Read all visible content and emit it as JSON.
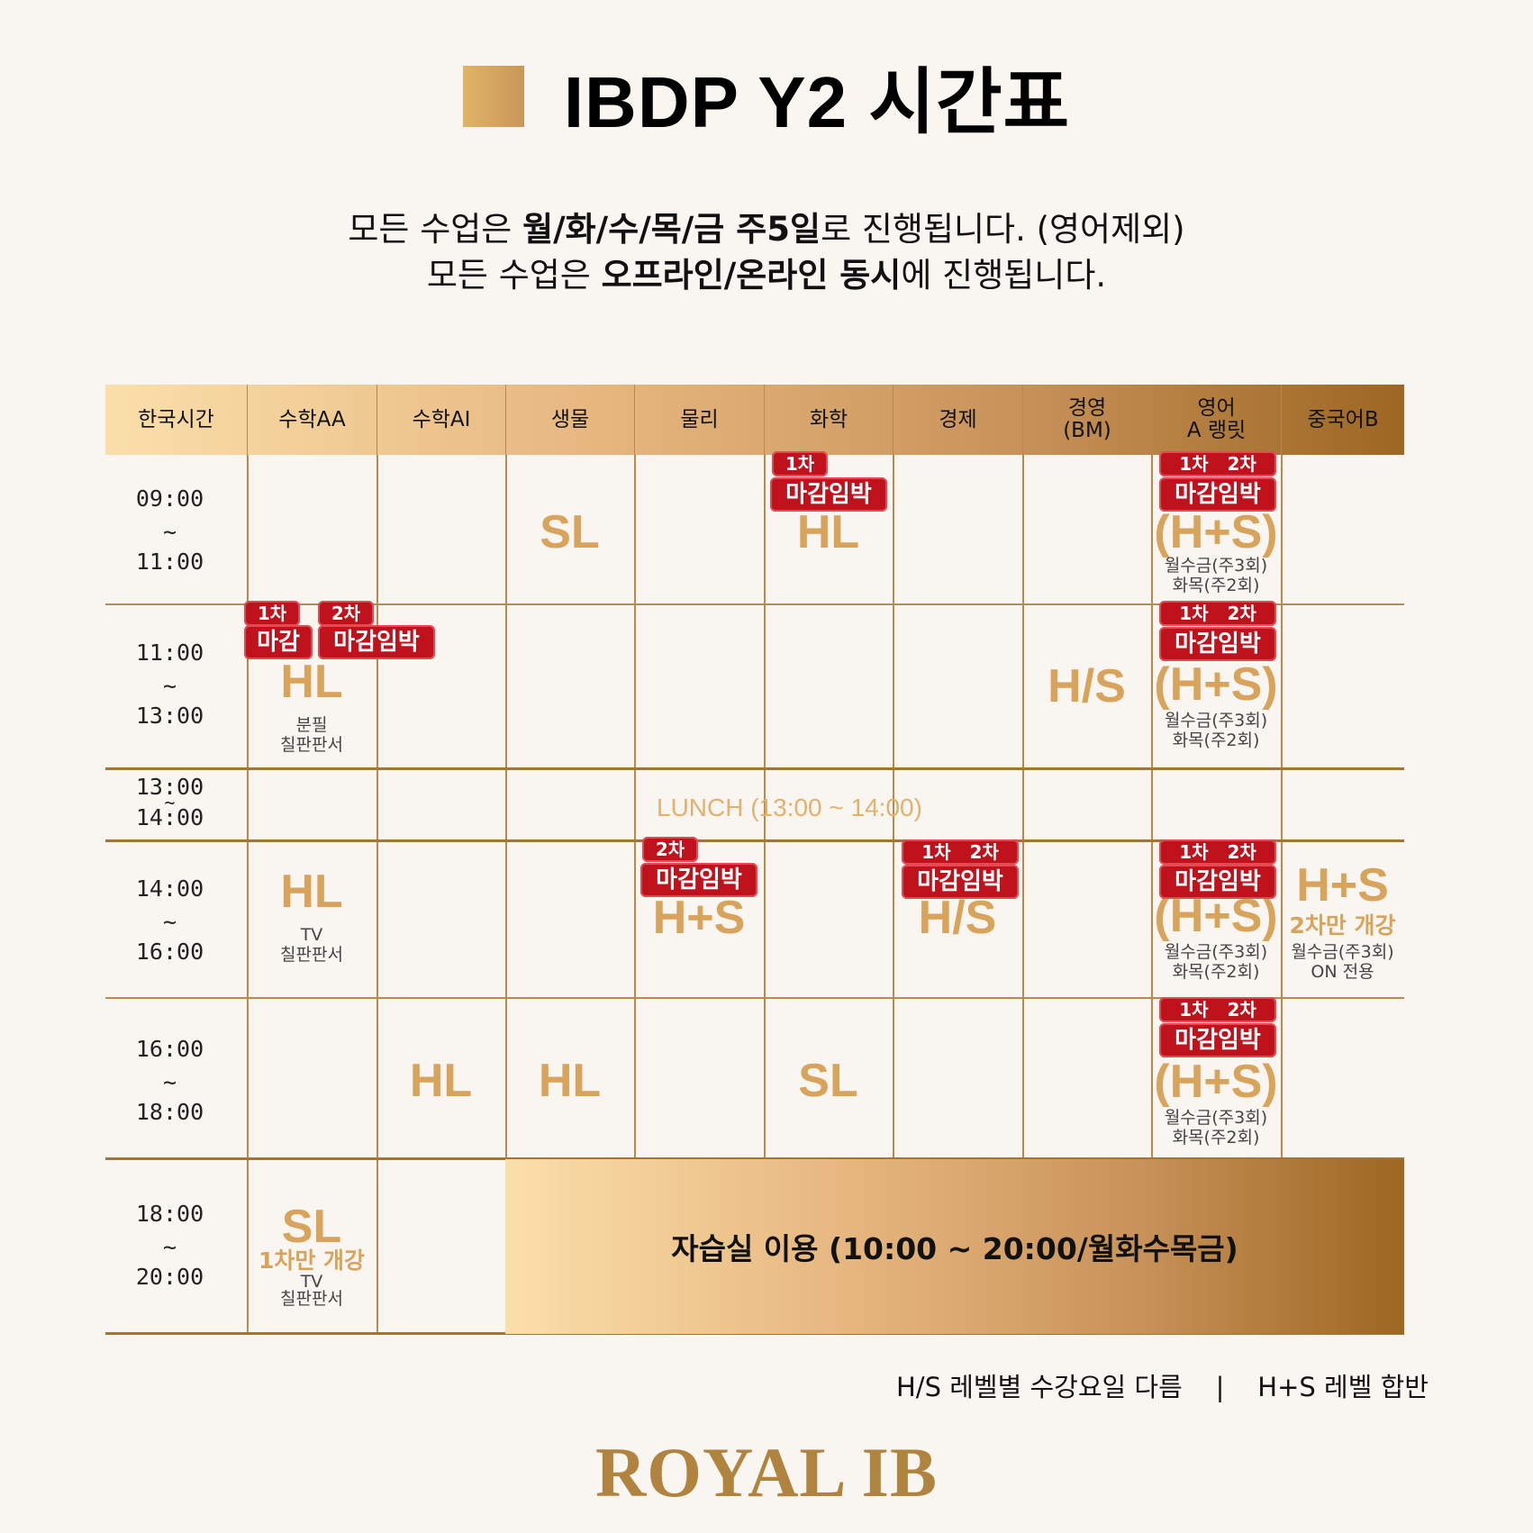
{
  "title": "IBDP Y2 시간표",
  "subtitle": {
    "line1_pre": "모든 수업은 ",
    "line1_bold1": "월/화/수/목/금 주5일",
    "line1_post": "로 진행됩니다. (영어제외)",
    "line2_pre": "모든 수업은 ",
    "line2_bold1": "오프라인/온라인 동시",
    "line2_post": "에 진행됩니다."
  },
  "headers": [
    "한국시간",
    "수학AA",
    "수학AI",
    "생물",
    "물리",
    "화학",
    "경제",
    "경영\n(BM)",
    "영어\nA 랭릿",
    "중국어B"
  ],
  "times": [
    [
      "09:00",
      "~",
      "11:00"
    ],
    [
      "11:00",
      "~",
      "13:00"
    ],
    [
      "13:00",
      "~",
      "14:00"
    ],
    [
      "14:00",
      "~",
      "16:00"
    ],
    [
      "16:00",
      "~",
      "18:00"
    ],
    [
      "18:00",
      "~",
      "20:00"
    ]
  ],
  "lunch": "LUNCH (13:00 ~ 14:00)",
  "study_room": "자습실 이용 (10:00 ~ 20:00/월화수목금)",
  "levels": {
    "SL": "SL",
    "HL": "HL",
    "HS_slash": "H/S",
    "HS_plus": "H+S",
    "HS_paren": "(H+S)"
  },
  "tags": {
    "first": "1차",
    "second": "2차",
    "deadline": "마감",
    "deadline_soon": "마감임박"
  },
  "notes": {
    "eng_days_a": "월수금(주3회)",
    "eng_days_b": "화목(주2회)",
    "aa_board_a": "분필",
    "board": "칠판판서",
    "tv": "TV",
    "chinese_days": "월수금(주3회)",
    "on_only": "ON 전용",
    "second_only": "2차만 개강",
    "first_only": "1차만 개강"
  },
  "footer_note": "H/S 레벨별 수강요일 다름    |    H+S 레벨 합반",
  "brand": "ROYAL IB"
}
